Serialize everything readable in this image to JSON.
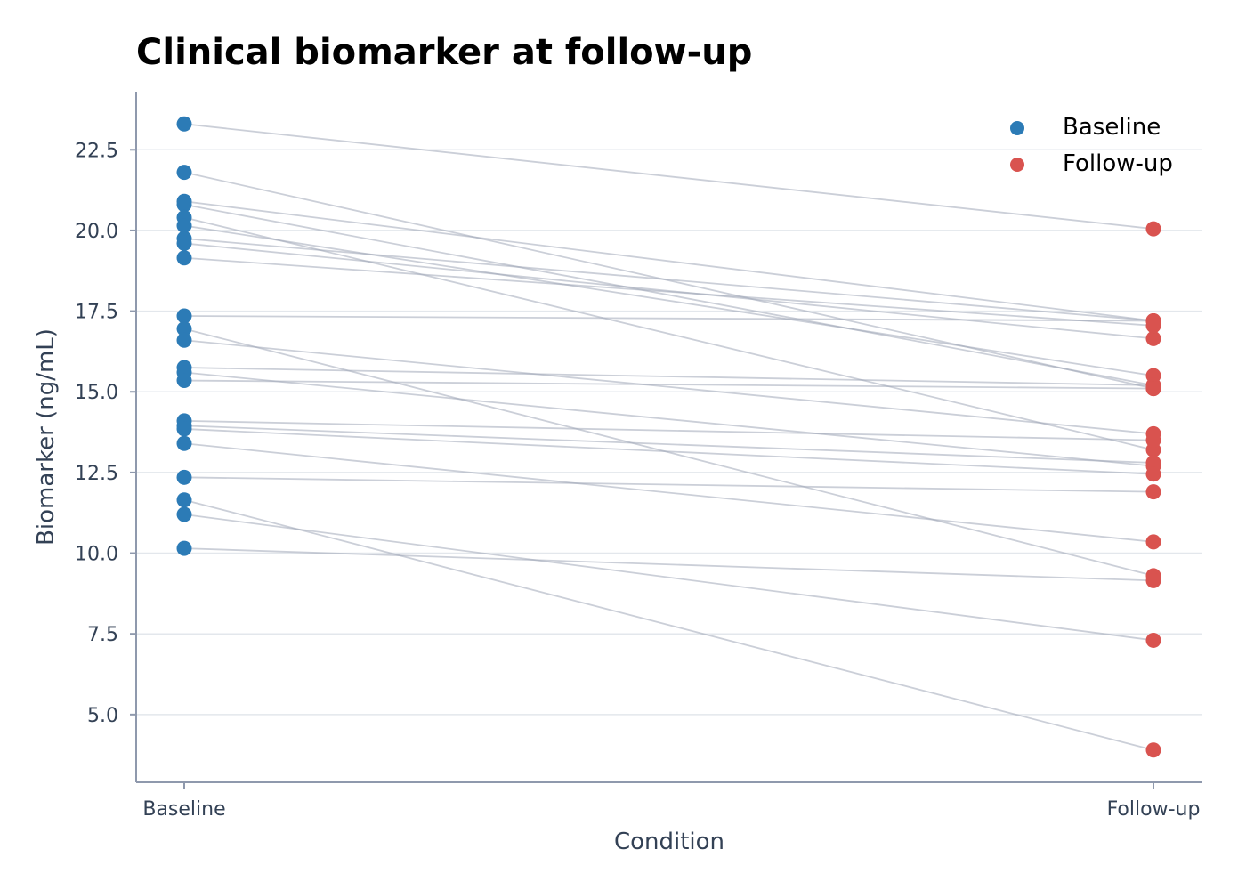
{
  "chart_data": {
    "type": "scatter",
    "title": "Clinical biomarker at follow-up",
    "xlabel": "Condition",
    "ylabel": "Biomarker (ng/mL)",
    "categories": [
      "Baseline",
      "Follow-up"
    ],
    "ylim": [
      2.9,
      24.3
    ],
    "yticks": [
      5.0,
      7.5,
      10.0,
      12.5,
      15.0,
      17.5,
      20.0,
      22.5
    ],
    "grid": "y",
    "legend_placement": "top-right",
    "series": [
      {
        "name": "Baseline",
        "color": "#2c7bb6"
      },
      {
        "name": "Follow-up",
        "color": "#d9534f"
      }
    ],
    "line_color": "#a0a8b8",
    "pairs": [
      [
        23.3,
        20.05
      ],
      [
        21.8,
        15.1
      ],
      [
        20.9,
        17.2
      ],
      [
        20.8,
        15.2
      ],
      [
        20.4,
        13.2
      ],
      [
        20.15,
        15.5
      ],
      [
        19.75,
        17.2
      ],
      [
        19.6,
        16.65
      ],
      [
        19.15,
        17.05
      ],
      [
        17.35,
        17.2
      ],
      [
        16.95,
        9.3
      ],
      [
        16.6,
        13.7
      ],
      [
        15.75,
        15.2
      ],
      [
        15.6,
        12.7
      ],
      [
        15.35,
        15.1
      ],
      [
        14.1,
        13.5
      ],
      [
        13.95,
        12.8
      ],
      [
        13.85,
        12.45
      ],
      [
        13.4,
        10.35
      ],
      [
        12.35,
        11.9
      ],
      [
        11.65,
        3.9
      ],
      [
        11.2,
        7.3
      ],
      [
        10.15,
        9.15
      ]
    ]
  }
}
